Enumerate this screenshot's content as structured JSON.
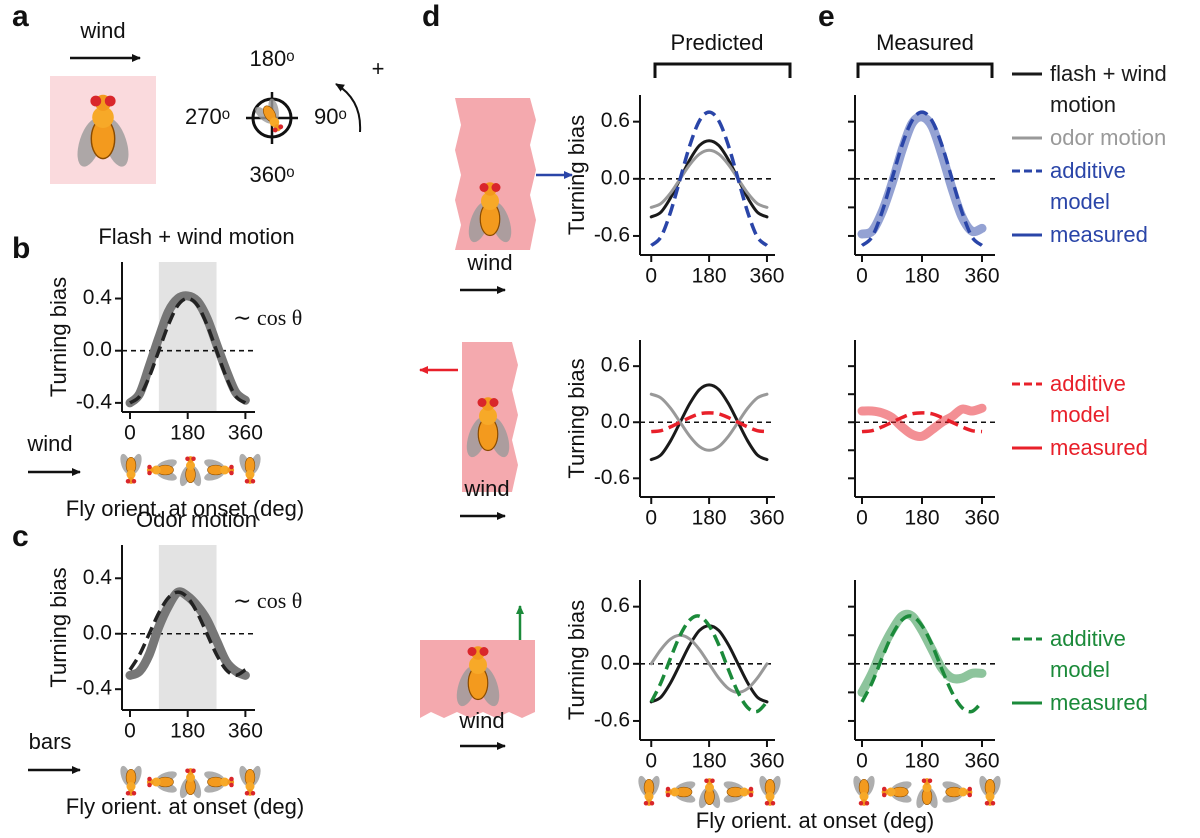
{
  "panel_labels": [
    "a",
    "b",
    "c",
    "d",
    "e"
  ],
  "diagram": {
    "stimulus": "wind",
    "angles": [
      "180ᵒ",
      "90ᵒ",
      "360ᵒ",
      "270ᵒ"
    ],
    "rotation": "+"
  },
  "column_titles": [
    "Predicted",
    "Measured"
  ],
  "shared_x_label": "Fly orient. at onset (deg)",
  "row_stimulus": [
    "wind",
    "wind",
    "wind"
  ],
  "chart_data": [
    {
      "type": "line",
      "title": "Flash + wind motion",
      "ylabel": "Turning bias",
      "xlabel": "Fly orient. at onset (deg)",
      "stimulus": "wind",
      "annotation": "∼ cos θ",
      "x": [
        0,
        30,
        60,
        90,
        120,
        150,
        180,
        210,
        240,
        270,
        300,
        330,
        360
      ],
      "series": [
        {
          "color": "#777777",
          "style": "band",
          "values": [
            -0.4,
            -0.33,
            -0.12,
            0.1,
            0.3,
            0.4,
            0.42,
            0.38,
            0.25,
            0.05,
            -0.15,
            -0.32,
            -0.38
          ]
        },
        {
          "color": "#222222",
          "style": "dashed",
          "values": [
            -0.4,
            -0.35,
            -0.2,
            0,
            0.2,
            0.35,
            0.4,
            0.35,
            0.2,
            0,
            -0.2,
            -0.35,
            -0.4
          ]
        }
      ],
      "xlim": [
        -25,
        390
      ],
      "ylim": [
        -0.47,
        0.68
      ],
      "xticks": [
        0,
        180,
        360
      ],
      "yticks": [
        -0.4,
        {
          "value": 0,
          "label": "0.0"
        },
        0.4
      ],
      "shade_x": [
        90,
        270
      ],
      "zero_line": true
    },
    {
      "type": "line",
      "title": "Odor motion",
      "ylabel": "Turning bias",
      "xlabel": "Fly orient. at onset (deg)",
      "stimulus": "bars",
      "annotation": "∼ cos θ",
      "x": [
        0,
        30,
        60,
        90,
        120,
        150,
        180,
        210,
        240,
        270,
        300,
        330,
        360
      ],
      "series": [
        {
          "color": "#777777",
          "style": "band",
          "values": [
            -0.3,
            -0.27,
            -0.15,
            0.05,
            0.2,
            0.3,
            0.27,
            0.2,
            0.1,
            -0.05,
            -0.2,
            -0.27,
            -0.3
          ]
        },
        {
          "color": "#222222",
          "style": "dashed",
          "values": [
            -0.26,
            -0.15,
            0,
            0.15,
            0.26,
            0.3,
            0.26,
            0.15,
            0,
            -0.15,
            -0.26,
            -0.3,
            -0.26
          ]
        }
      ],
      "xlim": [
        -25,
        390
      ],
      "ylim": [
        -0.55,
        0.64
      ],
      "xticks": [
        0,
        180,
        360
      ],
      "yticks": [
        -0.4,
        {
          "value": 0,
          "label": "0.0"
        },
        0.4
      ],
      "shade_x": [
        90,
        270
      ],
      "zero_line": true
    },
    {
      "type": "line",
      "ylabel": "Turning bias",
      "x": [
        0,
        30,
        60,
        90,
        120,
        150,
        180,
        210,
        240,
        270,
        300,
        330,
        360
      ],
      "series": [
        {
          "name": "flash + wind motion",
          "color": "#1a1a1a",
          "style": "solid",
          "values": [
            -0.4,
            -0.35,
            -0.2,
            0,
            0.2,
            0.35,
            0.4,
            0.35,
            0.2,
            0,
            -0.2,
            -0.35,
            -0.4
          ]
        },
        {
          "name": "odor motion",
          "color": "#999999",
          "style": "solid",
          "values": [
            -0.3,
            -0.26,
            -0.15,
            0,
            0.15,
            0.26,
            0.3,
            0.26,
            0.15,
            0,
            -0.15,
            -0.26,
            -0.3
          ]
        },
        {
          "name": "additive model",
          "color": "#2a45a8",
          "style": "dashed",
          "values": [
            -0.7,
            -0.61,
            -0.35,
            0,
            0.35,
            0.61,
            0.7,
            0.61,
            0.35,
            0,
            -0.35,
            -0.61,
            -0.7
          ]
        }
      ],
      "xlim": [
        -35,
        385
      ],
      "ylim": [
        -0.8,
        0.88
      ],
      "xticks": [
        0,
        180,
        360
      ],
      "yticks": [
        -0.6,
        {
          "value": 0,
          "label": "0.0"
        },
        0.6
      ],
      "zero_line": true
    },
    {
      "type": "line",
      "ylabel": "Turning bias",
      "x": [
        0,
        30,
        60,
        90,
        120,
        150,
        180,
        210,
        240,
        270,
        300,
        330,
        360
      ],
      "series": [
        {
          "color": "#1a1a1a",
          "style": "solid",
          "values": [
            -0.4,
            -0.35,
            -0.2,
            0,
            0.2,
            0.35,
            0.4,
            0.35,
            0.2,
            0,
            -0.2,
            -0.35,
            -0.4
          ]
        },
        {
          "color": "#999999",
          "style": "solid",
          "values": [
            0.3,
            0.26,
            0.15,
            0,
            -0.15,
            -0.26,
            -0.3,
            -0.26,
            -0.15,
            0,
            0.15,
            0.26,
            0.3
          ]
        },
        {
          "name": "additive model",
          "color": "#e8202a",
          "style": "dashed",
          "values": [
            -0.1,
            -0.09,
            -0.05,
            0,
            0.05,
            0.09,
            0.1,
            0.09,
            0.05,
            0,
            -0.05,
            -0.09,
            -0.1
          ]
        }
      ],
      "xlim": [
        -35,
        385
      ],
      "ylim": [
        -0.8,
        0.88
      ],
      "xticks": [
        0,
        180,
        360
      ],
      "yticks": [
        -0.6,
        {
          "value": 0,
          "label": "0.0"
        },
        0.6
      ],
      "zero_line": true
    },
    {
      "type": "line",
      "ylabel": "Turning bias",
      "x": [
        0,
        30,
        60,
        90,
        120,
        150,
        180,
        210,
        240,
        270,
        300,
        330,
        360
      ],
      "series": [
        {
          "color": "#1a1a1a",
          "style": "solid",
          "values": [
            -0.4,
            -0.35,
            -0.2,
            0,
            0.2,
            0.35,
            0.4,
            0.35,
            0.2,
            0,
            -0.2,
            -0.35,
            -0.4
          ]
        },
        {
          "color": "#999999",
          "style": "solid",
          "values": [
            0,
            0.15,
            0.26,
            0.3,
            0.26,
            0.15,
            0,
            -0.15,
            -0.26,
            -0.3,
            -0.26,
            -0.15,
            0
          ]
        },
        {
          "name": "additive model",
          "color": "#1b8a3a",
          "style": "dashed",
          "values": [
            -0.4,
            -0.2,
            0.06,
            0.3,
            0.46,
            0.5,
            0.4,
            0.2,
            -0.06,
            -0.3,
            -0.46,
            -0.5,
            -0.4
          ]
        }
      ],
      "xlim": [
        -35,
        385
      ],
      "ylim": [
        -0.8,
        0.88
      ],
      "xticks": [
        0,
        180,
        360
      ],
      "yticks": [
        -0.6,
        {
          "value": 0,
          "label": "0.0"
        },
        0.6
      ],
      "zero_line": true
    },
    {
      "type": "line",
      "x": [
        0,
        30,
        60,
        90,
        120,
        150,
        180,
        210,
        240,
        270,
        300,
        330,
        360
      ],
      "series": [
        {
          "name": "measured",
          "color": "#2a45a8",
          "style": "band",
          "values": [
            -0.58,
            -0.55,
            -0.35,
            -0.05,
            0.3,
            0.58,
            0.65,
            0.55,
            0.25,
            -0.1,
            -0.4,
            -0.55,
            -0.52
          ]
        },
        {
          "color": "#2a45a8",
          "style": "dashed",
          "values": [
            -0.7,
            -0.61,
            -0.35,
            0,
            0.35,
            0.61,
            0.7,
            0.61,
            0.35,
            0,
            -0.35,
            -0.61,
            -0.7
          ]
        }
      ],
      "xlim": [
        -21,
        399
      ],
      "ylim": [
        -0.8,
        0.88
      ],
      "xticks": [
        0,
        180,
        360
      ],
      "yticks": [
        -0.6,
        -0.3,
        0,
        0.3,
        0.6
      ],
      "ytick_labels": false,
      "zero_line": true
    },
    {
      "type": "line",
      "x": [
        0,
        30,
        60,
        90,
        120,
        150,
        180,
        210,
        240,
        270,
        300,
        330,
        360
      ],
      "series": [
        {
          "name": "measured",
          "color": "#e8202a",
          "style": "band",
          "values": [
            0.12,
            0.12,
            0.1,
            0.05,
            -0.05,
            -0.13,
            -0.15,
            -0.08,
            0,
            0.06,
            0.14,
            0.12,
            0.15
          ]
        },
        {
          "color": "#e8202a",
          "style": "dashed",
          "values": [
            -0.1,
            -0.09,
            -0.05,
            0,
            0.05,
            0.09,
            0.1,
            0.09,
            0.05,
            0,
            -0.05,
            -0.09,
            -0.1
          ]
        }
      ],
      "xlim": [
        -21,
        399
      ],
      "ylim": [
        -0.8,
        0.88
      ],
      "xticks": [
        0,
        180,
        360
      ],
      "yticks": [
        -0.6,
        -0.3,
        0,
        0.3,
        0.6
      ],
      "ytick_labels": false,
      "zero_line": true
    },
    {
      "type": "line",
      "x": [
        0,
        30,
        60,
        90,
        120,
        150,
        180,
        210,
        240,
        270,
        300,
        330,
        360
      ],
      "series": [
        {
          "name": "measured",
          "color": "#1b8a3a",
          "style": "band",
          "values": [
            -0.3,
            -0.1,
            0.15,
            0.35,
            0.5,
            0.5,
            0.35,
            0.15,
            -0.05,
            -0.15,
            -0.15,
            -0.1,
            -0.1
          ]
        },
        {
          "color": "#1b8a3a",
          "style": "dashed",
          "values": [
            -0.4,
            -0.2,
            0.06,
            0.3,
            0.46,
            0.5,
            0.4,
            0.2,
            -0.06,
            -0.3,
            -0.46,
            -0.5,
            -0.4
          ]
        }
      ],
      "xlim": [
        -21,
        399
      ],
      "ylim": [
        -0.8,
        0.88
      ],
      "xticks": [
        0,
        180,
        360
      ],
      "yticks": [
        -0.6,
        -0.3,
        0,
        0.3,
        0.6
      ],
      "ytick_labels": false,
      "zero_line": true
    }
  ]
}
